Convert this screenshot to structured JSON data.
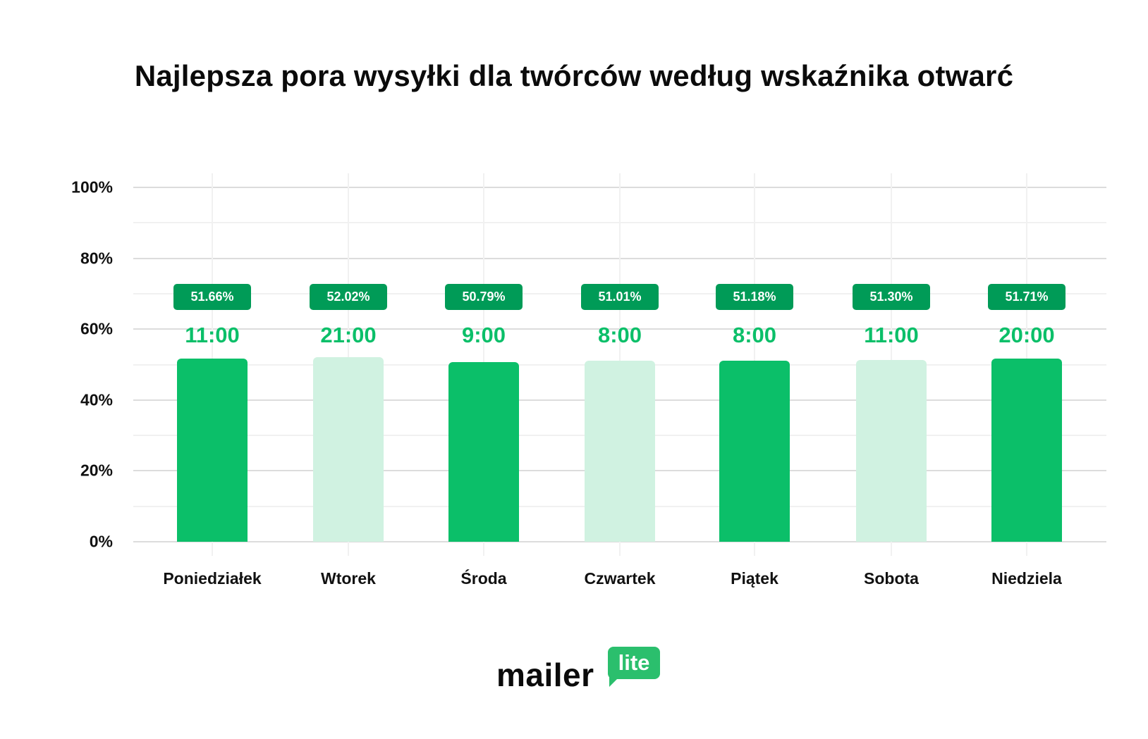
{
  "title": "Najlepsza pora wysyłki dla twórców według wskaźnika otwarć",
  "colors": {
    "bar_dark": "#0bbf69",
    "bar_light": "#d0f2e1",
    "badge": "#009b57",
    "time_text": "#0bbf69",
    "logo_green": "#2bbf6d"
  },
  "y_axis": {
    "ticks": [
      "0%",
      "20%",
      "40%",
      "60%",
      "80%",
      "100%"
    ]
  },
  "chart_data": {
    "type": "bar",
    "title": "Najlepsza pora wysyłki dla twórców według wskaźnika otwarć",
    "xlabel": "",
    "ylabel": "",
    "ylim": [
      0,
      100
    ],
    "yticks": [
      "0%",
      "20%",
      "40%",
      "60%",
      "80%",
      "100%"
    ],
    "grid": true,
    "legend": null,
    "categories": [
      "Poniedziałek",
      "Wtorek",
      "Środa",
      "Czwartek",
      "Piątek",
      "Sobota",
      "Niedziela"
    ],
    "values": [
      51.66,
      52.02,
      50.79,
      51.01,
      51.18,
      51.3,
      51.71
    ],
    "value_labels": [
      "51.66%",
      "52.02%",
      "50.79%",
      "51.01%",
      "51.18%",
      "51.30%",
      "51.71%"
    ],
    "best_time": [
      "11:00",
      "21:00",
      "9:00",
      "8:00",
      "8:00",
      "11:00",
      "20:00"
    ],
    "bar_shade": [
      "dark",
      "light",
      "dark",
      "light",
      "dark",
      "light",
      "dark"
    ]
  },
  "bars": [
    {
      "day": "Poniedziałek",
      "value": 51.66,
      "label": "51.66%",
      "time": "11:00",
      "shade": "dark"
    },
    {
      "day": "Wtorek",
      "value": 52.02,
      "label": "52.02%",
      "time": "21:00",
      "shade": "light"
    },
    {
      "day": "Środa",
      "value": 50.79,
      "label": "50.79%",
      "time": "9:00",
      "shade": "dark"
    },
    {
      "day": "Czwartek",
      "value": 51.01,
      "label": "51.01%",
      "time": "8:00",
      "shade": "light"
    },
    {
      "day": "Piątek",
      "value": 51.18,
      "label": "51.18%",
      "time": "8:00",
      "shade": "dark"
    },
    {
      "day": "Sobota",
      "value": 51.3,
      "label": "51.30%",
      "time": "11:00",
      "shade": "light"
    },
    {
      "day": "Niedziela",
      "value": 51.71,
      "label": "51.71%",
      "time": "20:00",
      "shade": "dark"
    }
  ],
  "logo": {
    "word": "mailer",
    "bubble": "lite"
  }
}
